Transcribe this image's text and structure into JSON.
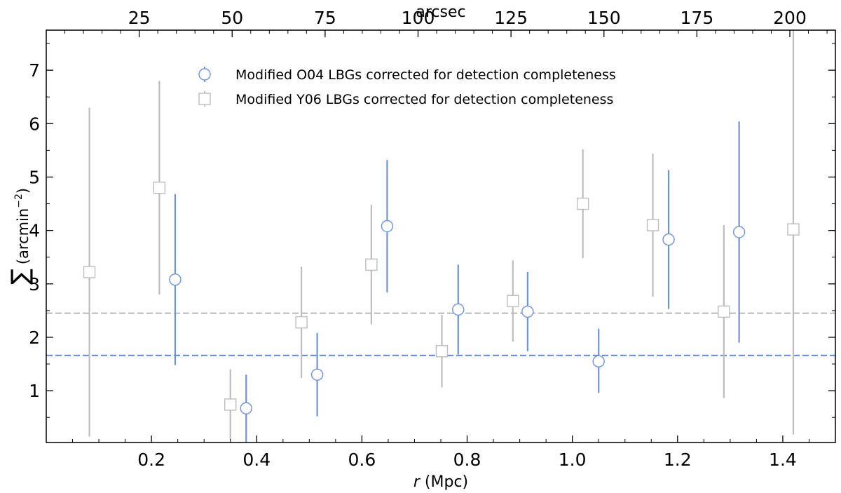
{
  "chart_data": {
    "type": "scatter",
    "title": "",
    "xlabel_italic": "r",
    "xlabel_rest": " (Mpc)",
    "ylabel_symbol": "∑",
    "ylabel_unit": "(arcmin",
    "ylabel_exp": "−2",
    "ylabel_close": ")",
    "top_xlabel": "arcsec",
    "xlim": [
      0.0,
      1.5
    ],
    "ylim": [
      0.03,
      7.75
    ],
    "x_ticks": [
      {
        "value": 0.2,
        "label": "0.2"
      },
      {
        "value": 0.4,
        "label": "0.4"
      },
      {
        "value": 0.6,
        "label": "0.6"
      },
      {
        "value": 0.8,
        "label": "0.8"
      },
      {
        "value": 1.0,
        "label": "1.0"
      },
      {
        "value": 1.2,
        "label": "1.2"
      },
      {
        "value": 1.4,
        "label": "1.4"
      }
    ],
    "y_ticks": [
      {
        "value": 1,
        "label": "1"
      },
      {
        "value": 2,
        "label": "2"
      },
      {
        "value": 3,
        "label": "3"
      },
      {
        "value": 4,
        "label": "4"
      },
      {
        "value": 5,
        "label": "5"
      },
      {
        "value": 6,
        "label": "6"
      },
      {
        "value": 7,
        "label": "7"
      }
    ],
    "top_ticks": [
      {
        "value": 25,
        "label": "25"
      },
      {
        "value": 50,
        "label": "50"
      },
      {
        "value": 75,
        "label": "75"
      },
      {
        "value": 100,
        "label": "100"
      },
      {
        "value": 125,
        "label": "125"
      },
      {
        "value": 150,
        "label": "150"
      },
      {
        "value": 175,
        "label": "175"
      },
      {
        "value": 200,
        "label": "200"
      }
    ],
    "arcsec_per_mpc": 141.5,
    "legend_position": "top-center",
    "series": [
      {
        "name": "Modified O04 LBGs corrected for detection completeness",
        "marker": "circle",
        "color": "#6d93e0",
        "points": [
          {
            "x": 0.245,
            "y": 3.08,
            "lo": 1.48,
            "hi": 4.68
          },
          {
            "x": 0.38,
            "y": 0.67,
            "lo": 0.03,
            "hi": 1.3
          },
          {
            "x": 0.515,
            "y": 1.3,
            "lo": 0.52,
            "hi": 2.08
          },
          {
            "x": 0.648,
            "y": 4.08,
            "lo": 2.84,
            "hi": 5.32
          },
          {
            "x": 0.783,
            "y": 2.52,
            "lo": 1.68,
            "hi": 3.36
          },
          {
            "x": 0.915,
            "y": 2.48,
            "lo": 1.74,
            "hi": 3.22
          },
          {
            "x": 1.05,
            "y": 1.55,
            "lo": 0.96,
            "hi": 2.16
          },
          {
            "x": 1.183,
            "y": 3.83,
            "lo": 2.53,
            "hi": 5.13
          },
          {
            "x": 1.317,
            "y": 3.97,
            "lo": 1.9,
            "hi": 6.04
          }
        ],
        "mean": 1.66
      },
      {
        "name": "Modified Y06 LBGs corrected for detection completeness",
        "marker": "square",
        "color": "#bdbdbd",
        "points": [
          {
            "x": 0.082,
            "y": 3.22,
            "lo": 0.14,
            "hi": 6.3
          },
          {
            "x": 0.215,
            "y": 4.8,
            "lo": 2.8,
            "hi": 6.8
          },
          {
            "x": 0.35,
            "y": 0.74,
            "lo": 0.08,
            "hi": 1.4
          },
          {
            "x": 0.485,
            "y": 2.28,
            "lo": 1.24,
            "hi": 3.32
          },
          {
            "x": 0.618,
            "y": 3.36,
            "lo": 2.24,
            "hi": 4.48
          },
          {
            "x": 0.752,
            "y": 1.74,
            "lo": 1.06,
            "hi": 2.42
          },
          {
            "x": 0.887,
            "y": 2.68,
            "lo": 1.92,
            "hi": 3.44
          },
          {
            "x": 1.02,
            "y": 4.5,
            "lo": 3.48,
            "hi": 5.52
          },
          {
            "x": 1.153,
            "y": 4.1,
            "lo": 2.76,
            "hi": 5.44
          },
          {
            "x": 1.288,
            "y": 2.48,
            "lo": 0.86,
            "hi": 4.1
          },
          {
            "x": 1.42,
            "y": 4.02,
            "lo": 0.18,
            "hi": 7.86
          }
        ],
        "mean": 2.45
      }
    ]
  }
}
